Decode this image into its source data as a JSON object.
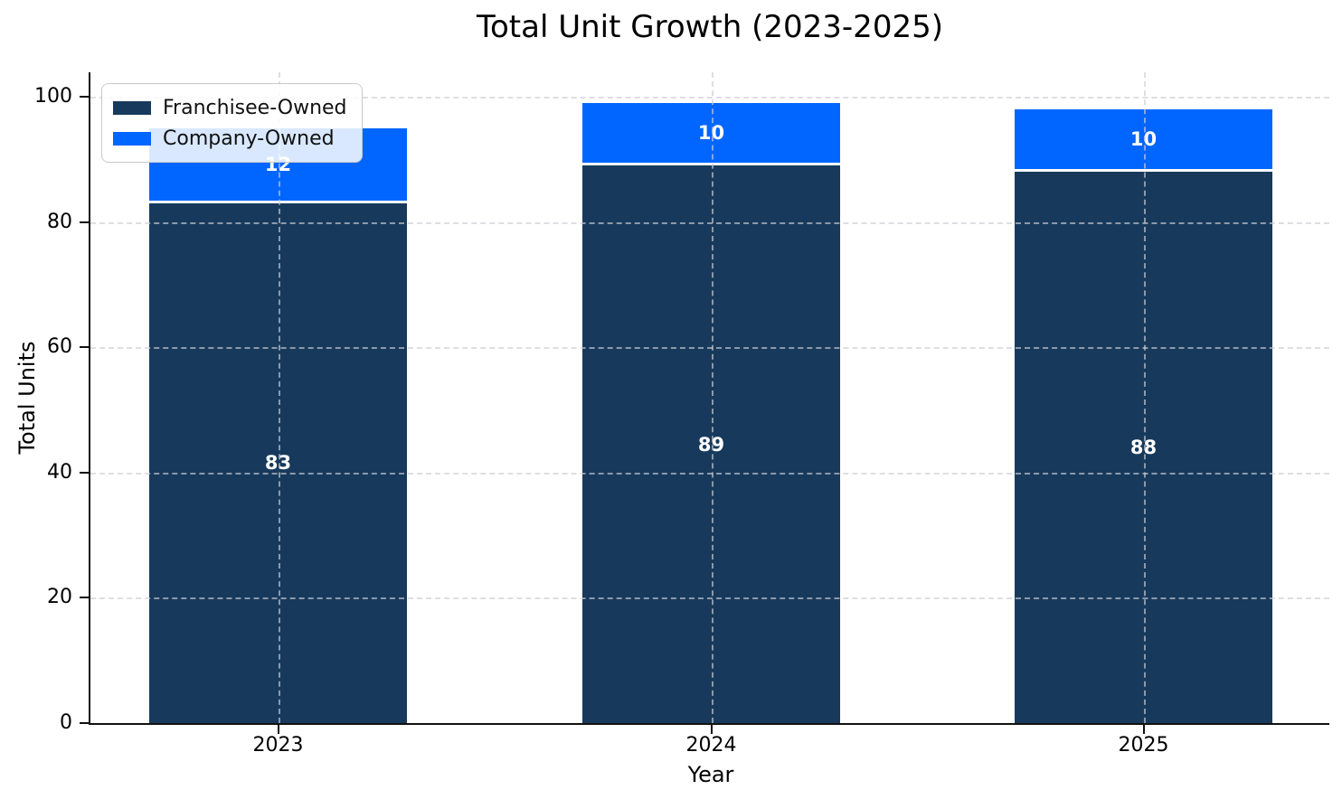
{
  "chart_data": {
    "type": "bar",
    "stacked": true,
    "title": "Total Unit Growth (2023-2025)",
    "xlabel": "Year",
    "ylabel": "Total Units",
    "categories": [
      "2023",
      "2024",
      "2025"
    ],
    "series": [
      {
        "name": "Franchisee-Owned",
        "color": "#173A5C",
        "values": [
          83,
          89,
          88
        ]
      },
      {
        "name": "Company-Owned",
        "color": "#0066FF",
        "values": [
          12,
          10,
          10
        ]
      }
    ],
    "bar_value_labels": [
      [
        "83",
        "89",
        "88"
      ],
      [
        "12",
        "10",
        "10"
      ]
    ],
    "yticks": [
      0,
      20,
      40,
      60,
      80,
      100
    ],
    "ylim": [
      0,
      104
    ],
    "grid": true,
    "grid_style": "dashed",
    "legend_position": "upper-left",
    "bar_label_color": "#ffffff",
    "segment_divider_color": "#ffffff"
  }
}
